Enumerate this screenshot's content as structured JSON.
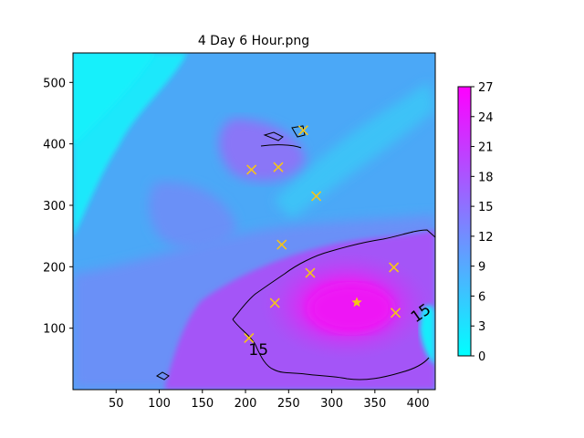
{
  "chart_data": {
    "type": "heatmap",
    "title": "4 Day 6 Hour.png",
    "xlabel": "",
    "ylabel": "",
    "xlim": [
      0,
      420
    ],
    "ylim": [
      0,
      548
    ],
    "x_ticks": [
      50,
      100,
      150,
      200,
      250,
      300,
      350,
      400
    ],
    "y_ticks": [
      100,
      200,
      300,
      400,
      500
    ],
    "colorbar": {
      "range": [
        0,
        27
      ],
      "ticks": [
        0,
        3,
        6,
        9,
        12,
        15,
        18,
        21,
        24,
        27
      ],
      "colormap": "cool",
      "colors": [
        "#00ffff",
        "#ff00ff"
      ]
    },
    "contour_label": {
      "text": "15",
      "x": 215,
      "y": 65
    },
    "contour_label_2": {
      "text": "15",
      "x": 403,
      "y": 125
    },
    "markers_x": [
      [
        267,
        422
      ],
      [
        207,
        358
      ],
      [
        238,
        362
      ],
      [
        282,
        315
      ],
      [
        242,
        236
      ],
      [
        275,
        190
      ],
      [
        372,
        199
      ],
      [
        234,
        141
      ],
      [
        374,
        125
      ],
      [
        204,
        84
      ]
    ],
    "markers_star": [
      [
        329,
        142
      ]
    ],
    "marker_color": "#f5c518",
    "grid": false
  }
}
